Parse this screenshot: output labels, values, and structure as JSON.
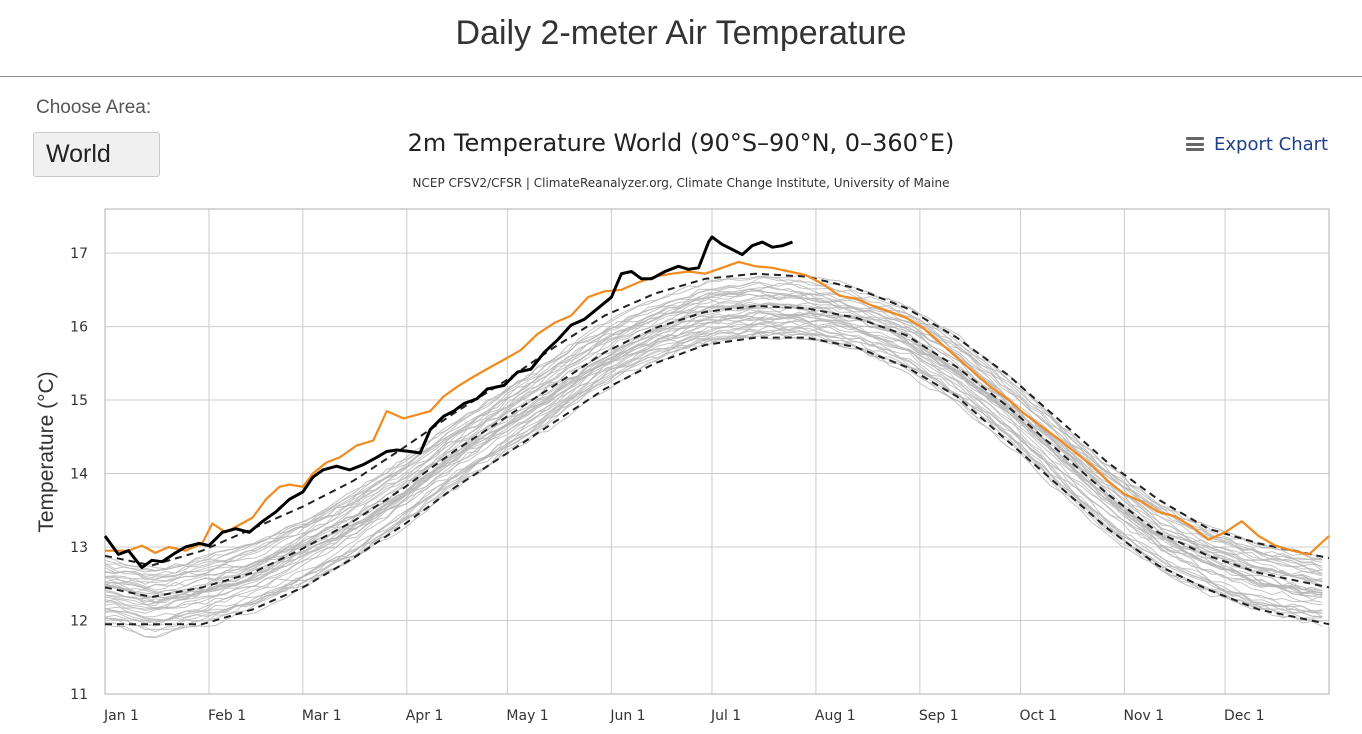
{
  "page": {
    "title": "Daily 2-meter Air Temperature",
    "area_label": "Choose Area:",
    "area_value": "World",
    "export_label": "Export Chart",
    "export_icon": "menu-icon"
  },
  "colors": {
    "current_year": "#000000",
    "previous_year": "#f28a1d",
    "past_years": "#b5b5b5",
    "mean_and_sd": "#222222",
    "grid": "#cccccc",
    "export_text": "#1f3e8c"
  },
  "chart_data": {
    "type": "line",
    "title": "2m Temperature World (90°S–90°N, 0–360°E)",
    "subtitle": "NCEP CFSV2/CFSR | ClimateReanalyzer.org, Climate Change Institute, University of Maine",
    "xlabel": "",
    "ylabel": "Temperature (°C)",
    "x_unit": "day of year",
    "xlim": [
      1,
      366
    ],
    "ylim": [
      11,
      17.6
    ],
    "yticks": [
      11,
      12,
      13,
      14,
      15,
      16,
      17
    ],
    "xticks": [
      {
        "label": "Jan 1",
        "day": 1
      },
      {
        "label": "Feb 1",
        "day": 32
      },
      {
        "label": "Mar 1",
        "day": 60
      },
      {
        "label": "Apr 1",
        "day": 91
      },
      {
        "label": "May 1",
        "day": 121
      },
      {
        "label": "Jun 1",
        "day": 152
      },
      {
        "label": "Jul 1",
        "day": 182
      },
      {
        "label": "Aug 1",
        "day": 213
      },
      {
        "label": "Sep 1",
        "day": 244
      },
      {
        "label": "Oct 1",
        "day": 274
      },
      {
        "label": "Nov 1",
        "day": 305
      },
      {
        "label": "Dec 1",
        "day": 335
      }
    ],
    "grid": true,
    "legend": "none",
    "series": [
      {
        "role": "current",
        "style": "solid-thick",
        "x": [
          1,
          5,
          8,
          12,
          15,
          18,
          22,
          25,
          29,
          32,
          36,
          40,
          44,
          48,
          52,
          56,
          60,
          63,
          66,
          70,
          74,
          78,
          82,
          85,
          88,
          92,
          95,
          98,
          102,
          105,
          108,
          112,
          115,
          120,
          124,
          128,
          132,
          136,
          140,
          144,
          148,
          152,
          155,
          158,
          161,
          164,
          168,
          172,
          175,
          178,
          181,
          182,
          185,
          188,
          191,
          194,
          197,
          200,
          203,
          206
        ],
        "values": [
          13.15,
          12.9,
          12.95,
          12.72,
          12.82,
          12.8,
          12.92,
          13.0,
          13.05,
          13.02,
          13.2,
          13.25,
          13.2,
          13.35,
          13.48,
          13.65,
          13.75,
          13.95,
          14.05,
          14.1,
          14.05,
          14.12,
          14.22,
          14.3,
          14.32,
          14.3,
          14.28,
          14.6,
          14.78,
          14.85,
          14.95,
          15.02,
          15.15,
          15.2,
          15.38,
          15.42,
          15.65,
          15.82,
          16.02,
          16.1,
          16.25,
          16.4,
          16.72,
          16.75,
          16.65,
          16.65,
          16.75,
          16.82,
          16.78,
          16.8,
          17.15,
          17.22,
          17.12,
          17.05,
          16.98,
          17.1,
          17.15,
          17.08,
          17.1,
          17.15
        ]
      },
      {
        "role": "previous",
        "style": "solid",
        "x": [
          1,
          8,
          12,
          16,
          20,
          25,
          30,
          33,
          37,
          41,
          45,
          49,
          53,
          56,
          60,
          63,
          67,
          71,
          76,
          81,
          85,
          90,
          94,
          98,
          102,
          106,
          111,
          116,
          120,
          125,
          130,
          135,
          140,
          145,
          150,
          155,
          160,
          165,
          170,
          175,
          180,
          185,
          190,
          195,
          200,
          205,
          210,
          215,
          220,
          225,
          230,
          235,
          240,
          245,
          250,
          255,
          260,
          265,
          270,
          275,
          280,
          285,
          290,
          295,
          300,
          305,
          310,
          315,
          320,
          325,
          330,
          335,
          340,
          345,
          350,
          355,
          360,
          366
        ],
        "values": [
          12.95,
          12.95,
          13.02,
          12.92,
          13.0,
          12.95,
          13.05,
          13.32,
          13.2,
          13.3,
          13.4,
          13.65,
          13.82,
          13.85,
          13.82,
          14.0,
          14.15,
          14.22,
          14.38,
          14.45,
          14.85,
          14.75,
          14.8,
          14.85,
          15.05,
          15.18,
          15.32,
          15.45,
          15.55,
          15.68,
          15.9,
          16.05,
          16.15,
          16.4,
          16.48,
          16.5,
          16.6,
          16.68,
          16.72,
          16.75,
          16.72,
          16.8,
          16.88,
          16.82,
          16.8,
          16.75,
          16.7,
          16.58,
          16.42,
          16.38,
          16.28,
          16.2,
          16.12,
          15.98,
          15.78,
          15.58,
          15.38,
          15.18,
          15.02,
          14.82,
          14.65,
          14.48,
          14.3,
          14.12,
          13.9,
          13.72,
          13.62,
          13.48,
          13.42,
          13.28,
          13.1,
          13.2,
          13.35,
          13.15,
          13.02,
          12.95,
          12.9,
          13.15
        ]
      },
      {
        "role": "mean+2sd",
        "style": "dashed",
        "x": [
          1,
          15,
          30,
          45,
          60,
          75,
          90,
          105,
          120,
          135,
          150,
          165,
          180,
          195,
          210,
          225,
          240,
          255,
          270,
          285,
          300,
          315,
          330,
          345,
          366
        ],
        "values": [
          12.88,
          12.75,
          12.95,
          13.25,
          13.55,
          13.9,
          14.35,
          14.82,
          15.25,
          15.72,
          16.15,
          16.45,
          16.65,
          16.72,
          16.68,
          16.52,
          16.25,
          15.85,
          15.35,
          14.75,
          14.15,
          13.65,
          13.25,
          13.05,
          12.85
        ]
      },
      {
        "role": "mean",
        "style": "dashed",
        "x": [
          1,
          15,
          30,
          45,
          60,
          75,
          90,
          105,
          120,
          135,
          150,
          165,
          180,
          195,
          210,
          225,
          240,
          255,
          270,
          285,
          300,
          315,
          330,
          345,
          366
        ],
        "values": [
          12.45,
          12.32,
          12.45,
          12.65,
          12.98,
          13.35,
          13.8,
          14.3,
          14.75,
          15.2,
          15.65,
          15.98,
          16.2,
          16.28,
          16.25,
          16.12,
          15.88,
          15.45,
          14.92,
          14.32,
          13.72,
          13.2,
          12.88,
          12.65,
          12.45
        ]
      },
      {
        "role": "mean-2sd",
        "style": "dashed",
        "x": [
          1,
          15,
          30,
          45,
          60,
          75,
          90,
          105,
          120,
          135,
          150,
          165,
          180,
          195,
          210,
          225,
          240,
          255,
          270,
          285,
          300,
          315,
          330,
          345,
          366
        ],
        "values": [
          11.95,
          11.95,
          11.95,
          12.15,
          12.45,
          12.85,
          13.3,
          13.8,
          14.25,
          14.7,
          15.15,
          15.5,
          15.75,
          15.85,
          15.85,
          15.72,
          15.45,
          15.05,
          14.45,
          13.85,
          13.25,
          12.75,
          12.42,
          12.15,
          11.95
        ]
      }
    ],
    "past_years": {
      "count": 43,
      "description_note": "",
      "band_center": "mean",
      "spread_c": 0.42
    }
  }
}
